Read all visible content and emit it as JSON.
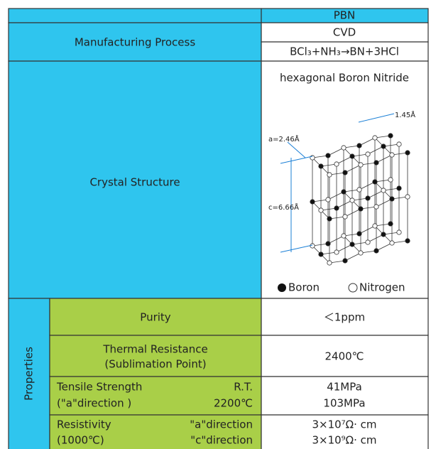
{
  "header": {
    "product": "PBN"
  },
  "manufacturing_process": {
    "label": "Manufacturing Process",
    "method": "CVD",
    "reaction": "BCl₃+NH₃→BN+3HCl"
  },
  "crystal_structure": {
    "label": "Crystal Structure",
    "name": "hexagonal Boron Nitride",
    "annotations": [
      "1.45Å",
      "a=2.46Å",
      "c=6.66Å"
    ],
    "legend": [
      "Boron",
      "Nitrogen"
    ]
  },
  "properties": {
    "label": "Properties",
    "purity": {
      "name": "Purity",
      "value": "＜1ppm"
    },
    "thermal_resistance": {
      "name": [
        "Thermal Resistance",
        "(Sublimation Point)"
      ],
      "value": "2400℃"
    },
    "tensile_strength": {
      "name": [
        "Tensile Strength",
        "(\"a\"direction )"
      ],
      "conditions": [
        "R.T.",
        "2200℃"
      ],
      "values": [
        "41MPa",
        "103MPa"
      ]
    },
    "resistivity": {
      "name": [
        "Resistivity",
        "(1000℃)"
      ],
      "conditions": [
        "\"a\"direction",
        "\"c\"direction"
      ],
      "values": [
        "3×10⁷Ω· cm",
        "3×10⁹Ω· cm"
      ]
    }
  }
}
